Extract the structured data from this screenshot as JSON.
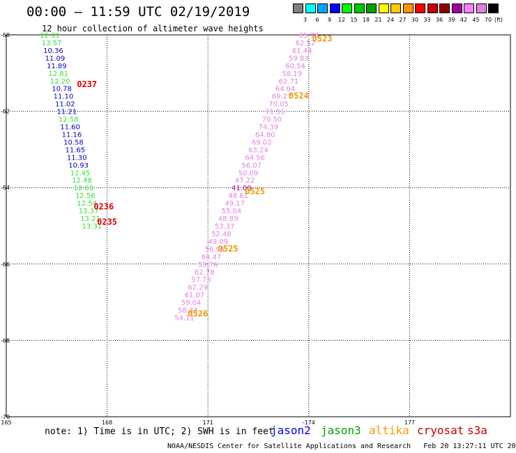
{
  "title": "00:00 – 11:59 UTC 02/19/2019",
  "subtitle": "12 hour collection of altimeter wave heights",
  "legend": {
    "colors": [
      "#808080",
      "#00ffff",
      "#00a8ff",
      "#0000ff",
      "#00ff00",
      "#00c800",
      "#00a000",
      "#ffff00",
      "#ffc800",
      "#ff9600",
      "#ff0000",
      "#c80000",
      "#960000",
      "#a000a0",
      "#ff80ff",
      "#e080e0",
      "#000000"
    ],
    "labels": [
      "3",
      "6",
      "9",
      "12",
      "15",
      "18",
      "21",
      "24",
      "27",
      "30",
      "33",
      "36",
      "39",
      "42",
      "45",
      "70"
    ],
    "unit": "(ft)"
  },
  "note": "note: 1) Time is in UTC; 2) SWH is in feet",
  "satellites": [
    {
      "name": "jason2",
      "color": "#0000ff"
    },
    {
      "name": "jason3",
      "color": "#00a000"
    },
    {
      "name": "altika",
      "color": "#ff9600"
    },
    {
      "name": "cryosat",
      "color": "#c80000"
    },
    {
      "name": "s3a",
      "color": "#c80000"
    }
  ],
  "credit": "NOAA/NESDIS Center for Satellite Applications and Research   Feb 20 13:27:11 UTC 2019",
  "chart_data": {
    "type": "scatter",
    "xlim": [
      -165,
      -180
    ],
    "ylim": [
      -70,
      -60
    ],
    "x_ticks": [
      {
        "v": -165,
        "label": "165"
      },
      {
        "v": -168,
        "label": "168"
      },
      {
        "v": -171,
        "label": "171"
      },
      {
        "v": -174,
        "label": "-174"
      },
      {
        "v": -177,
        "label": "177"
      }
    ],
    "y_ticks": [
      {
        "v": -60,
        "label": "-60"
      },
      {
        "v": -62,
        "label": "-62"
      },
      {
        "v": -64,
        "label": "-64"
      },
      {
        "v": -66,
        "label": "-66"
      },
      {
        "v": -68,
        "label": "-68"
      },
      {
        "v": -70,
        "label": "-70"
      }
    ],
    "grid": true,
    "points": [
      {
        "x": -166.3,
        "y": -60.0,
        "v": "12.01",
        "c": "#33dd33"
      },
      {
        "x": -166.35,
        "y": -60.2,
        "v": "13.57",
        "c": "#33dd33"
      },
      {
        "x": -166.4,
        "y": -60.4,
        "v": "10.36",
        "c": "#0000c8"
      },
      {
        "x": -166.45,
        "y": -60.6,
        "v": "11.09",
        "c": "#0000c8"
      },
      {
        "x": -166.5,
        "y": -60.8,
        "v": "11.89",
        "c": "#0000c8"
      },
      {
        "x": -166.55,
        "y": -61.0,
        "v": "12.81",
        "c": "#33dd33"
      },
      {
        "x": -166.6,
        "y": -61.2,
        "v": "12.20",
        "c": "#33dd33"
      },
      {
        "x": -166.65,
        "y": -61.4,
        "v": "10.78",
        "c": "#0000c8"
      },
      {
        "x": -166.7,
        "y": -61.6,
        "v": "11.10",
        "c": "#0000c8"
      },
      {
        "x": -166.75,
        "y": -61.8,
        "v": "11.02",
        "c": "#0000c8"
      },
      {
        "x": -166.8,
        "y": -62.0,
        "v": "11.21",
        "c": "#0000c8"
      },
      {
        "x": -166.85,
        "y": -62.2,
        "v": "12.58",
        "c": "#33dd33"
      },
      {
        "x": -166.9,
        "y": -62.4,
        "v": "11.60",
        "c": "#0000c8"
      },
      {
        "x": -166.95,
        "y": -62.6,
        "v": "11.16",
        "c": "#0000c8"
      },
      {
        "x": -167.0,
        "y": -62.8,
        "v": "10.58",
        "c": "#0000c8"
      },
      {
        "x": -167.05,
        "y": -63.0,
        "v": "11.65",
        "c": "#0000c8"
      },
      {
        "x": -167.1,
        "y": -63.2,
        "v": "11.30",
        "c": "#0000c8"
      },
      {
        "x": -167.15,
        "y": -63.4,
        "v": "10.93",
        "c": "#0000c8"
      },
      {
        "x": -167.2,
        "y": -63.6,
        "v": "12.45",
        "c": "#33dd33"
      },
      {
        "x": -167.25,
        "y": -63.8,
        "v": "12.48",
        "c": "#33dd33"
      },
      {
        "x": -167.3,
        "y": -64.0,
        "v": "12.69",
        "c": "#33dd33"
      },
      {
        "x": -167.35,
        "y": -64.2,
        "v": "12.56",
        "c": "#33dd33"
      },
      {
        "x": -167.4,
        "y": -64.4,
        "v": "12.54",
        "c": "#33dd33"
      },
      {
        "x": -167.45,
        "y": -64.6,
        "v": "13.37",
        "c": "#33dd33"
      },
      {
        "x": -167.5,
        "y": -64.8,
        "v": "13.21",
        "c": "#33dd33"
      },
      {
        "x": -167.55,
        "y": -65.0,
        "v": "13.31",
        "c": "#33dd33"
      },
      {
        "x": -174.0,
        "y": -60.0,
        "v": "65.78",
        "c": "#e080e0"
      },
      {
        "x": -173.9,
        "y": -60.2,
        "v": "62.52",
        "c": "#e080e0"
      },
      {
        "x": -173.8,
        "y": -60.4,
        "v": "61.44",
        "c": "#e080e0"
      },
      {
        "x": -173.7,
        "y": -60.6,
        "v": "59.83",
        "c": "#e080e0"
      },
      {
        "x": -173.6,
        "y": -60.8,
        "v": "60.54",
        "c": "#e080e0"
      },
      {
        "x": -173.5,
        "y": -61.0,
        "v": "58.19",
        "c": "#e080e0"
      },
      {
        "x": -173.4,
        "y": -61.2,
        "v": "62.71",
        "c": "#e080e0"
      },
      {
        "x": -173.3,
        "y": -61.4,
        "v": "64.04",
        "c": "#e080e0"
      },
      {
        "x": -173.2,
        "y": -61.6,
        "v": "69.27",
        "c": "#e080e0"
      },
      {
        "x": -173.1,
        "y": -61.8,
        "v": "70.05",
        "c": "#e080e0"
      },
      {
        "x": -173.0,
        "y": -62.0,
        "v": "71.51",
        "c": "#e080e0"
      },
      {
        "x": -172.9,
        "y": -62.2,
        "v": "70.50",
        "c": "#e080e0"
      },
      {
        "x": -172.8,
        "y": -62.4,
        "v": "74.39",
        "c": "#e080e0"
      },
      {
        "x": -172.7,
        "y": -62.6,
        "v": "64.80",
        "c": "#e080e0"
      },
      {
        "x": -172.6,
        "y": -62.8,
        "v": "69.02",
        "c": "#e080e0"
      },
      {
        "x": -172.5,
        "y": -63.0,
        "v": "63.24",
        "c": "#e080e0"
      },
      {
        "x": -172.4,
        "y": -63.2,
        "v": "64.56",
        "c": "#e080e0"
      },
      {
        "x": -172.3,
        "y": -63.4,
        "v": "56.07",
        "c": "#e080e0"
      },
      {
        "x": -172.2,
        "y": -63.6,
        "v": "50.09",
        "c": "#e080e0"
      },
      {
        "x": -172.1,
        "y": -63.8,
        "v": "47.22",
        "c": "#e080e0"
      },
      {
        "x": -172.0,
        "y": -64.0,
        "v": "41.00",
        "c": "#a000a0"
      },
      {
        "x": -171.9,
        "y": -64.2,
        "v": "48.61",
        "c": "#e080e0"
      },
      {
        "x": -171.8,
        "y": -64.4,
        "v": "49.17",
        "c": "#e080e0"
      },
      {
        "x": -171.7,
        "y": -64.6,
        "v": "55.04",
        "c": "#e080e0"
      },
      {
        "x": -171.6,
        "y": -64.8,
        "v": "48.89",
        "c": "#e080e0"
      },
      {
        "x": -171.5,
        "y": -65.0,
        "v": "53.37",
        "c": "#e080e0"
      },
      {
        "x": -171.4,
        "y": -65.2,
        "v": "52.48",
        "c": "#e080e0"
      },
      {
        "x": -171.3,
        "y": -65.4,
        "v": "49.09",
        "c": "#e080e0"
      },
      {
        "x": -171.2,
        "y": -65.6,
        "v": "56.95",
        "c": "#e080e0"
      },
      {
        "x": -171.1,
        "y": -65.8,
        "v": "60.47",
        "c": "#e080e0"
      },
      {
        "x": -171.0,
        "y": -66.0,
        "v": "59.76",
        "c": "#e080e0"
      },
      {
        "x": -170.9,
        "y": -66.2,
        "v": "62.78",
        "c": "#e080e0"
      },
      {
        "x": -170.8,
        "y": -66.4,
        "v": "57.73",
        "c": "#e080e0"
      },
      {
        "x": -170.7,
        "y": -66.6,
        "v": "62.29",
        "c": "#e080e0"
      },
      {
        "x": -170.6,
        "y": -66.8,
        "v": "61.07",
        "c": "#e080e0"
      },
      {
        "x": -170.5,
        "y": -67.0,
        "v": "59.04",
        "c": "#e080e0"
      },
      {
        "x": -170.4,
        "y": -67.2,
        "v": "58.34",
        "c": "#e080e0"
      },
      {
        "x": -170.3,
        "y": -67.4,
        "v": "54.11",
        "c": "#e080e0"
      }
    ],
    "time_labels": [
      {
        "x": -167.1,
        "y": -61.3,
        "t": "0237",
        "c": "#dd0000"
      },
      {
        "x": -167.6,
        "y": -64.5,
        "t": "0236",
        "c": "#dd0000"
      },
      {
        "x": -167.7,
        "y": -64.9,
        "t": "0235",
        "c": "#dd0000"
      },
      {
        "x": -174.1,
        "y": -60.1,
        "t": "0523",
        "c": "#ee9900"
      },
      {
        "x": -173.4,
        "y": -61.6,
        "t": "0524",
        "c": "#ee9900"
      },
      {
        "x": -172.1,
        "y": -64.1,
        "t": "0525",
        "c": "#ee9900"
      },
      {
        "x": -171.3,
        "y": -65.6,
        "t": "0525",
        "c": "#ee9900"
      },
      {
        "x": -170.4,
        "y": -67.3,
        "t": "0526",
        "c": "#ee9900"
      }
    ]
  }
}
